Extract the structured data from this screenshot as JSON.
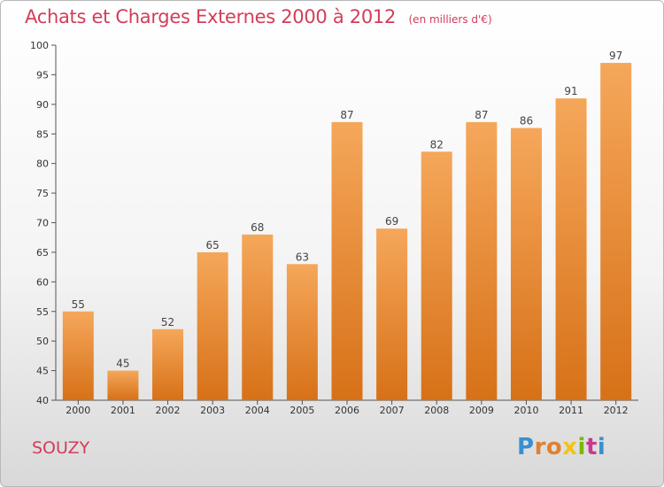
{
  "header": {
    "title": "Achats et Charges Externes 2000 à 2012",
    "unit": "(en milliers d'€)"
  },
  "footer": {
    "commune": "SOUZY",
    "logo_text": "Proxiti"
  },
  "colors": {
    "title": "#d33d59",
    "bar_top": "#f5a75a",
    "bar_bottom": "#d77118"
  },
  "chart_data": {
    "type": "bar",
    "title": "Achats et Charges Externes 2000 à 2012",
    "subtitle": "(en milliers d'€)",
    "xlabel": "",
    "ylabel": "",
    "categories": [
      "2000",
      "2001",
      "2002",
      "2003",
      "2004",
      "2005",
      "2006",
      "2007",
      "2008",
      "2009",
      "2010",
      "2011",
      "2012"
    ],
    "values": [
      55,
      45,
      52,
      65,
      68,
      63,
      87,
      69,
      82,
      87,
      86,
      91,
      97
    ],
    "ylim": [
      40,
      100
    ],
    "yticks": [
      40,
      45,
      50,
      55,
      60,
      65,
      70,
      75,
      80,
      85,
      90,
      95,
      100
    ],
    "grid": false,
    "legend": "none"
  }
}
